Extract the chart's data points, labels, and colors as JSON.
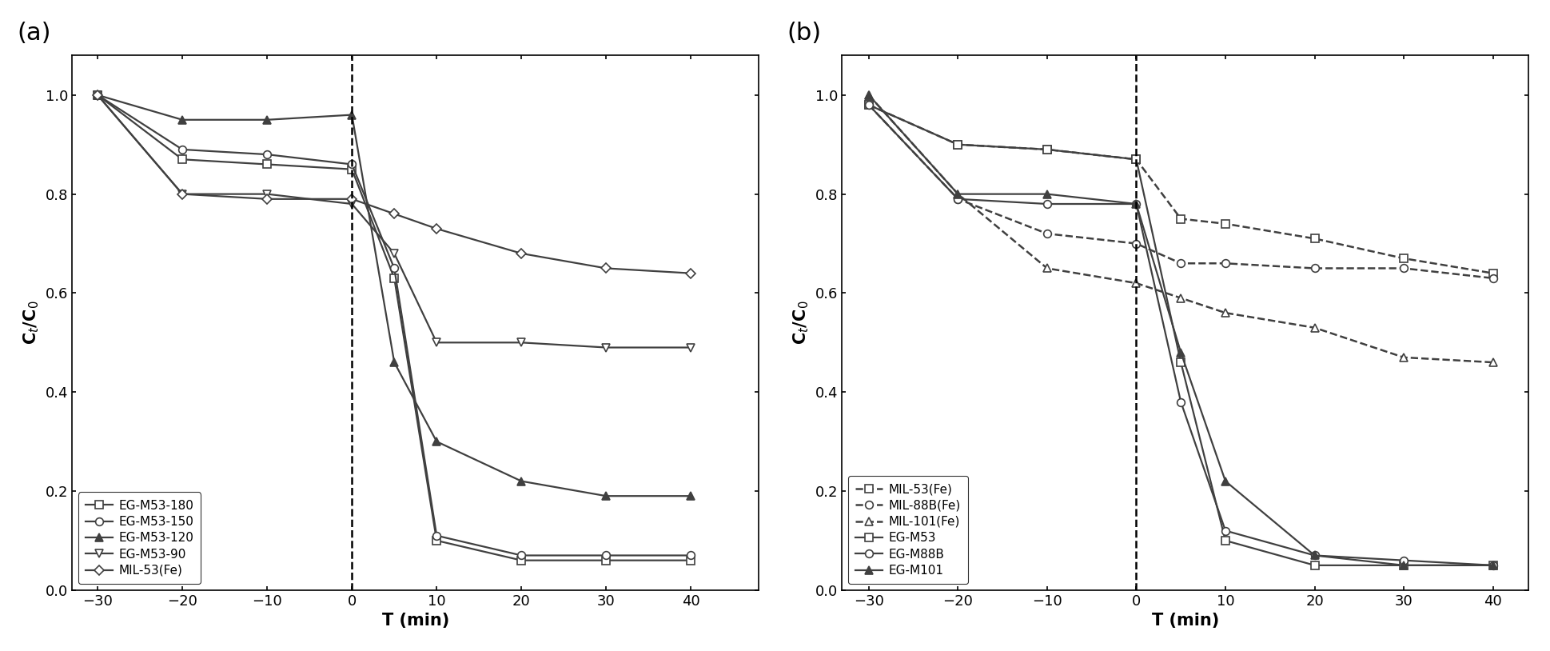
{
  "panel_a": {
    "xlabel": "T (min)",
    "ylabel": "C$_t$/C$_0$",
    "xlim": [
      -33,
      48
    ],
    "ylim": [
      0.0,
      1.08
    ],
    "xticks": [
      -30,
      -20,
      -10,
      0,
      10,
      20,
      30,
      40
    ],
    "yticks": [
      0.0,
      0.2,
      0.4,
      0.6,
      0.8,
      1.0
    ],
    "vline_x": 0,
    "series": [
      {
        "label": "EG-M53-180",
        "x": [
          -30,
          -20,
          -10,
          0,
          5,
          10,
          20,
          30,
          40
        ],
        "y": [
          1.0,
          0.87,
          0.86,
          0.85,
          0.63,
          0.1,
          0.06,
          0.06,
          0.06
        ],
        "color": "#404040",
        "marker": "s",
        "mfc": "white",
        "mec": "#404040",
        "linestyle": "-",
        "linewidth": 1.6,
        "ms": 7
      },
      {
        "label": "EG-M53-150",
        "x": [
          -30,
          -20,
          -10,
          0,
          5,
          10,
          20,
          30,
          40
        ],
        "y": [
          1.0,
          0.89,
          0.88,
          0.86,
          0.65,
          0.11,
          0.07,
          0.07,
          0.07
        ],
        "color": "#404040",
        "marker": "o",
        "mfc": "white",
        "mec": "#404040",
        "linestyle": "-",
        "linewidth": 1.6,
        "ms": 7
      },
      {
        "label": "EG-M53-120",
        "x": [
          -30,
          -20,
          -10,
          0,
          5,
          10,
          20,
          30,
          40
        ],
        "y": [
          1.0,
          0.95,
          0.95,
          0.96,
          0.46,
          0.3,
          0.22,
          0.19,
          0.19
        ],
        "color": "#404040",
        "marker": "^",
        "mfc": "#404040",
        "mec": "#404040",
        "linestyle": "-",
        "linewidth": 1.6,
        "ms": 7
      },
      {
        "label": "EG-M53-90",
        "x": [
          -30,
          -20,
          -10,
          0,
          5,
          10,
          20,
          30,
          40
        ],
        "y": [
          1.0,
          0.8,
          0.8,
          0.78,
          0.68,
          0.5,
          0.5,
          0.49,
          0.49
        ],
        "color": "#404040",
        "marker": "v",
        "mfc": "white",
        "mec": "#404040",
        "linestyle": "-",
        "linewidth": 1.6,
        "ms": 7
      },
      {
        "label": "MIL-53(Fe)",
        "x": [
          -30,
          -20,
          -10,
          0,
          5,
          10,
          20,
          30,
          40
        ],
        "y": [
          1.0,
          0.8,
          0.79,
          0.79,
          0.76,
          0.73,
          0.68,
          0.65,
          0.64
        ],
        "color": "#404040",
        "marker": "D",
        "mfc": "white",
        "mec": "#404040",
        "linestyle": "-",
        "linewidth": 1.6,
        "ms": 6
      }
    ]
  },
  "panel_b": {
    "xlabel": "T (min)",
    "ylabel": "C$_t$/C$_0$",
    "xlim": [
      -33,
      44
    ],
    "ylim": [
      0.0,
      1.08
    ],
    "xticks": [
      -30,
      -20,
      -10,
      0,
      10,
      20,
      30,
      40
    ],
    "yticks": [
      0.0,
      0.2,
      0.4,
      0.6,
      0.8,
      1.0
    ],
    "vline_x": 0,
    "series": [
      {
        "label": "MIL-53(Fe)",
        "x": [
          -30,
          -20,
          -10,
          0,
          5,
          10,
          20,
          30,
          40
        ],
        "y": [
          0.98,
          0.9,
          0.89,
          0.87,
          0.75,
          0.74,
          0.71,
          0.67,
          0.64
        ],
        "color": "#404040",
        "marker": "s",
        "mfc": "white",
        "mec": "#404040",
        "linestyle": "--",
        "linewidth": 1.8,
        "ms": 7
      },
      {
        "label": "MIL-88B(Fe)",
        "x": [
          -30,
          -20,
          -10,
          0,
          5,
          10,
          20,
          30,
          40
        ],
        "y": [
          0.98,
          0.79,
          0.72,
          0.7,
          0.66,
          0.66,
          0.65,
          0.65,
          0.63
        ],
        "color": "#404040",
        "marker": "o",
        "mfc": "white",
        "mec": "#404040",
        "linestyle": "--",
        "linewidth": 1.8,
        "ms": 7
      },
      {
        "label": "MIL-101(Fe)",
        "x": [
          -30,
          -20,
          -10,
          0,
          5,
          10,
          20,
          30,
          40
        ],
        "y": [
          1.0,
          0.8,
          0.65,
          0.62,
          0.59,
          0.56,
          0.53,
          0.47,
          0.46
        ],
        "color": "#404040",
        "marker": "^",
        "mfc": "white",
        "mec": "#404040",
        "linestyle": "--",
        "linewidth": 1.8,
        "ms": 7
      },
      {
        "label": "EG-M53",
        "x": [
          -30,
          -20,
          -10,
          0,
          5,
          10,
          20,
          30,
          40
        ],
        "y": [
          0.98,
          0.9,
          0.89,
          0.87,
          0.46,
          0.1,
          0.05,
          0.05,
          0.05
        ],
        "color": "#404040",
        "marker": "s",
        "mfc": "white",
        "mec": "#404040",
        "linestyle": "-",
        "linewidth": 1.6,
        "ms": 7
      },
      {
        "label": "EG-M88B",
        "x": [
          -30,
          -20,
          -10,
          0,
          5,
          10,
          20,
          30,
          40
        ],
        "y": [
          0.98,
          0.79,
          0.78,
          0.78,
          0.38,
          0.12,
          0.07,
          0.06,
          0.05
        ],
        "color": "#404040",
        "marker": "o",
        "mfc": "white",
        "mec": "#404040",
        "linestyle": "-",
        "linewidth": 1.6,
        "ms": 7
      },
      {
        "label": "EG-M101",
        "x": [
          -30,
          -20,
          -10,
          0,
          5,
          10,
          20,
          30,
          40
        ],
        "y": [
          1.0,
          0.8,
          0.8,
          0.78,
          0.48,
          0.22,
          0.07,
          0.05,
          0.05
        ],
        "color": "#404040",
        "marker": "^",
        "mfc": "#404040",
        "mec": "#404040",
        "linestyle": "-",
        "linewidth": 1.6,
        "ms": 7
      }
    ]
  },
  "background_color": "#ffffff",
  "figure_size": [
    19.4,
    8.14
  ],
  "dpi": 100
}
